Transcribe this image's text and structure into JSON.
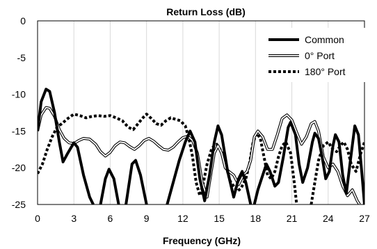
{
  "chart_data": {
    "type": "line",
    "title": "Return Loss (dB)",
    "xlabel": "Frequency (GHz)",
    "ylabel": "",
    "xlim": [
      0,
      27
    ],
    "ylim": [
      -25,
      0
    ],
    "xticks": [
      "0",
      "3",
      "6",
      "9",
      "12",
      "15",
      "18",
      "21",
      "24",
      "27"
    ],
    "yticks": [
      "0",
      "-5",
      "-10",
      "-15",
      "-20",
      "-25"
    ],
    "grid": "vertical",
    "legend_position": "top-right",
    "series": [
      {
        "name": "Common",
        "style": "thick-solid",
        "color": "#000000",
        "points": [
          [
            0,
            -15
          ],
          [
            0.3,
            -11
          ],
          [
            0.7,
            -9.3
          ],
          [
            1.0,
            -9.6
          ],
          [
            1.4,
            -12.5
          ],
          [
            1.8,
            -16.5
          ],
          [
            2.1,
            -19.2
          ],
          [
            2.5,
            -18.0
          ],
          [
            3.0,
            -16.6
          ],
          [
            3.3,
            -17.2
          ],
          [
            3.8,
            -21.0
          ],
          [
            4.3,
            -24.0
          ],
          [
            4.6,
            -25
          ],
          [
            null,
            null
          ],
          [
            5.2,
            -25
          ],
          [
            5.6,
            -21.5
          ],
          [
            5.9,
            -20.2
          ],
          [
            6.3,
            -21.5
          ],
          [
            6.7,
            -25
          ],
          [
            null,
            null
          ],
          [
            7.3,
            -25
          ],
          [
            7.8,
            -19.5
          ],
          [
            8.1,
            -19.0
          ],
          [
            8.5,
            -21.0
          ],
          [
            9.0,
            -25
          ],
          [
            null,
            null
          ],
          [
            10.7,
            -25
          ],
          [
            11.2,
            -22.0
          ],
          [
            11.7,
            -19.0
          ],
          [
            12.2,
            -16.5
          ],
          [
            12.6,
            -15.0
          ],
          [
            13.0,
            -16.5
          ],
          [
            13.4,
            -21.5
          ],
          [
            13.8,
            -24.5
          ],
          [
            14.2,
            -21.0
          ],
          [
            14.6,
            -16.5
          ],
          [
            14.9,
            -14.3
          ],
          [
            15.2,
            -15.5
          ],
          [
            15.7,
            -20.5
          ],
          [
            16.2,
            -24.0
          ],
          [
            16.6,
            -21.5
          ],
          [
            16.9,
            -20.5
          ],
          [
            17.2,
            -22.0
          ],
          [
            17.6,
            -25
          ],
          [
            null,
            null
          ],
          [
            17.9,
            -25
          ],
          [
            18.2,
            -23.0
          ],
          [
            18.5,
            -21.5
          ],
          [
            18.9,
            -19.5
          ],
          [
            19.2,
            -20.5
          ],
          [
            19.6,
            -22.5
          ],
          [
            19.9,
            -22.0
          ],
          [
            20.3,
            -18.5
          ],
          [
            20.7,
            -14.5
          ],
          [
            20.9,
            -13.8
          ],
          [
            21.3,
            -15.5
          ],
          [
            21.6,
            -19.5
          ],
          [
            21.9,
            -22.0
          ],
          [
            22.3,
            -20.0
          ],
          [
            22.7,
            -16.5
          ],
          [
            22.9,
            -15.3
          ],
          [
            23.2,
            -16.0
          ],
          [
            23.5,
            -18.5
          ],
          [
            23.8,
            -21.5
          ],
          [
            24.1,
            -20.5
          ],
          [
            24.4,
            -17.0
          ],
          [
            24.6,
            -15.5
          ],
          [
            24.9,
            -16.5
          ],
          [
            25.2,
            -21.0
          ],
          [
            25.5,
            -23.5
          ],
          [
            25.8,
            -19.5
          ],
          [
            26.2,
            -14.3
          ],
          [
            26.5,
            -15.5
          ],
          [
            26.8,
            -21.0
          ],
          [
            27.0,
            -25
          ]
        ]
      },
      {
        "name": "0° Port",
        "style": "double-line",
        "color": "#000000",
        "points": [
          [
            0,
            -15
          ],
          [
            0.3,
            -12.8
          ],
          [
            0.7,
            -11.8
          ],
          [
            1.0,
            -11.9
          ],
          [
            1.4,
            -13.0
          ],
          [
            1.8,
            -14.8
          ],
          [
            2.2,
            -16.0
          ],
          [
            2.6,
            -16.6
          ],
          [
            3.0,
            -16.7
          ],
          [
            3.4,
            -16.3
          ],
          [
            3.8,
            -16.0
          ],
          [
            4.3,
            -16.1
          ],
          [
            4.8,
            -16.8
          ],
          [
            5.2,
            -17.8
          ],
          [
            5.6,
            -18.4
          ],
          [
            6.0,
            -17.9
          ],
          [
            6.4,
            -17.0
          ],
          [
            6.8,
            -16.5
          ],
          [
            7.2,
            -16.6
          ],
          [
            7.6,
            -17.1
          ],
          [
            8.0,
            -17.5
          ],
          [
            8.4,
            -17.0
          ],
          [
            8.8,
            -16.3
          ],
          [
            9.2,
            -16.0
          ],
          [
            9.6,
            -16.4
          ],
          [
            10.0,
            -17.0
          ],
          [
            10.4,
            -17.5
          ],
          [
            10.8,
            -17.6
          ],
          [
            11.2,
            -17.2
          ],
          [
            11.6,
            -16.5
          ],
          [
            12.0,
            -15.9
          ],
          [
            12.4,
            -15.7
          ],
          [
            12.8,
            -16.3
          ],
          [
            13.2,
            -18.0
          ],
          [
            13.6,
            -22.0
          ],
          [
            14.0,
            -24.0
          ],
          [
            14.3,
            -21.0
          ],
          [
            14.6,
            -18.0
          ],
          [
            14.9,
            -17.0
          ],
          [
            15.2,
            -18.0
          ],
          [
            15.5,
            -20.0
          ],
          [
            15.8,
            -20.5
          ],
          [
            16.2,
            -21.0
          ],
          [
            16.6,
            -22.3
          ],
          [
            17.0,
            -21.0
          ],
          [
            17.3,
            -20.5
          ],
          [
            17.6,
            -19.0
          ],
          [
            17.9,
            -15.8
          ],
          [
            18.2,
            -15.0
          ],
          [
            18.6,
            -15.8
          ],
          [
            19.0,
            -17.5
          ],
          [
            19.4,
            -17.5
          ],
          [
            19.8,
            -15.5
          ],
          [
            20.2,
            -13.3
          ],
          [
            20.6,
            -12.8
          ],
          [
            21.0,
            -13.5
          ],
          [
            21.4,
            -15.2
          ],
          [
            21.8,
            -16.8
          ],
          [
            22.2,
            -15.8
          ],
          [
            22.6,
            -14.0
          ],
          [
            22.9,
            -13.7
          ],
          [
            23.2,
            -15.0
          ],
          [
            23.6,
            -18.5
          ],
          [
            24.0,
            -20.0
          ],
          [
            24.4,
            -19.5
          ],
          [
            24.8,
            -20.5
          ],
          [
            25.2,
            -22.5
          ],
          [
            25.6,
            -23.8
          ],
          [
            26.0,
            -23.0
          ],
          [
            26.4,
            -24.5
          ],
          [
            26.6,
            -25
          ]
        ]
      },
      {
        "name": "180° Port",
        "style": "thick-dotted",
        "color": "#000000",
        "points": [
          [
            0,
            -20.8
          ],
          [
            0.4,
            -19.5
          ],
          [
            0.8,
            -17.5
          ],
          [
            1.2,
            -15.8
          ],
          [
            1.6,
            -14.5
          ],
          [
            2.0,
            -14.0
          ],
          [
            2.5,
            -13.3
          ],
          [
            3.0,
            -12.7
          ],
          [
            3.5,
            -12.9
          ],
          [
            4.0,
            -13.2
          ],
          [
            4.5,
            -13.0
          ],
          [
            5.0,
            -12.9
          ],
          [
            5.5,
            -13.0
          ],
          [
            6.0,
            -12.9
          ],
          [
            6.5,
            -13.2
          ],
          [
            7.0,
            -13.6
          ],
          [
            7.5,
            -14.5
          ],
          [
            7.9,
            -14.8
          ],
          [
            8.3,
            -14.0
          ],
          [
            8.7,
            -13.2
          ],
          [
            9.0,
            -12.7
          ],
          [
            9.4,
            -13.3
          ],
          [
            9.8,
            -14.0
          ],
          [
            10.2,
            -14.2
          ],
          [
            10.6,
            -13.6
          ],
          [
            11.0,
            -13.2
          ],
          [
            11.4,
            -13.4
          ],
          [
            11.8,
            -13.6
          ],
          [
            12.2,
            -14.3
          ],
          [
            12.5,
            -16.0
          ],
          [
            12.8,
            -18.5
          ],
          [
            13.1,
            -22.0
          ],
          [
            13.4,
            -23.8
          ],
          [
            13.7,
            -22.0
          ],
          [
            14.0,
            -19.5
          ],
          [
            14.4,
            -17.3
          ],
          [
            14.8,
            -16.8
          ],
          [
            15.2,
            -17.8
          ],
          [
            15.6,
            -20.0
          ],
          [
            15.9,
            -21.8
          ],
          [
            16.2,
            -22.5
          ],
          [
            16.5,
            -23.2
          ],
          [
            16.8,
            -22.8
          ],
          [
            17.2,
            -21.5
          ],
          [
            17.5,
            -19.5
          ],
          [
            17.8,
            -16.5
          ],
          [
            18.1,
            -15.3
          ],
          [
            18.4,
            -16.0
          ],
          [
            18.7,
            -18.5
          ],
          [
            19.0,
            -21.0
          ],
          [
            19.3,
            -21.5
          ],
          [
            19.6,
            -20.5
          ],
          [
            19.9,
            -18.5
          ],
          [
            20.2,
            -17.0
          ],
          [
            20.5,
            -16.5
          ],
          [
            20.9,
            -18.0
          ],
          [
            21.2,
            -22.0
          ],
          [
            21.4,
            -25
          ],
          [
            null,
            null
          ],
          [
            22.6,
            -25
          ],
          [
            22.9,
            -22.0
          ],
          [
            23.2,
            -19.0
          ],
          [
            23.6,
            -17.0
          ],
          [
            24.0,
            -16.5
          ],
          [
            24.4,
            -17.5
          ],
          [
            24.7,
            -17.8
          ],
          [
            25.0,
            -17.0
          ],
          [
            25.3,
            -16.5
          ],
          [
            25.6,
            -17.5
          ],
          [
            25.9,
            -19.5
          ],
          [
            26.3,
            -20.5
          ],
          [
            26.7,
            -18.0
          ],
          [
            27.0,
            -16.5
          ]
        ]
      }
    ]
  }
}
